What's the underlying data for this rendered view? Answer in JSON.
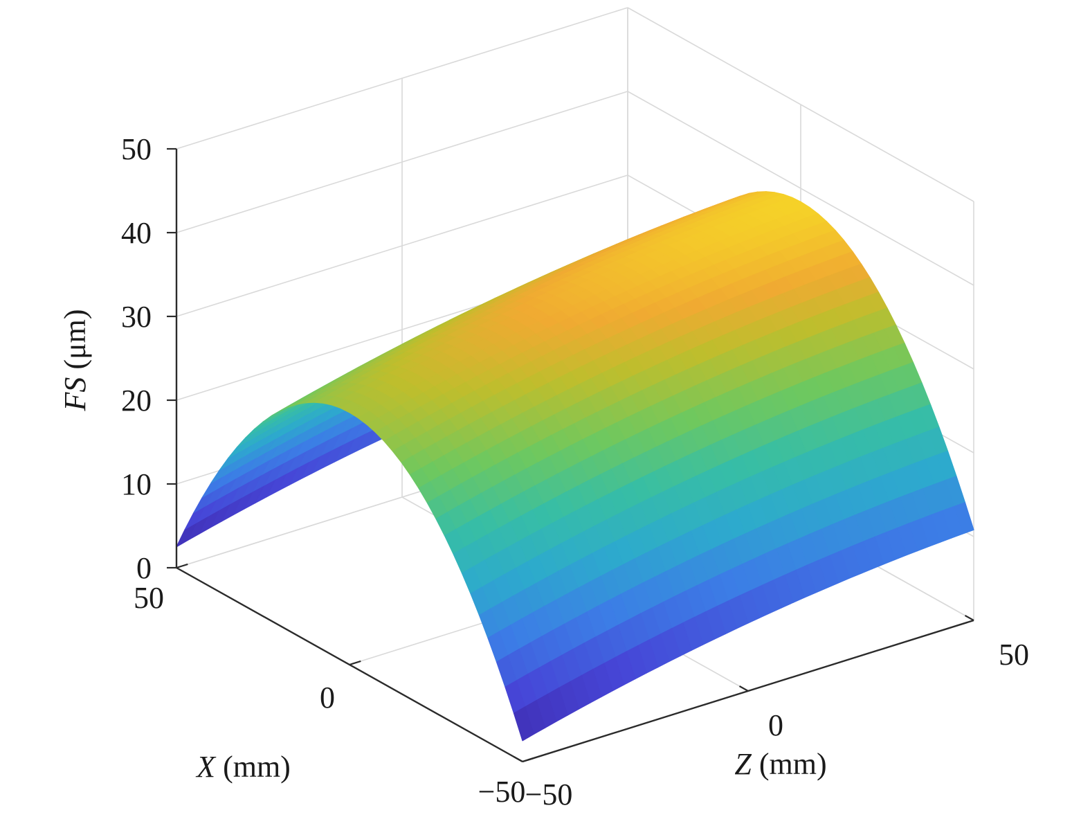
{
  "chart_data": {
    "type": "surface",
    "title": "",
    "xlabel": {
      "var": "X",
      "unit": " (mm)"
    },
    "zlabel": {
      "var": "Z",
      "unit": " (mm)"
    },
    "ylabel": {
      "var": "FS",
      "unit": " (μm)"
    },
    "x_ticks": [
      -50,
      0,
      50
    ],
    "z_ticks": [
      -50,
      0,
      50
    ],
    "fs_ticks": [
      0,
      10,
      20,
      30,
      40,
      50
    ],
    "x_tick_labels": [
      "−50",
      "0",
      "50"
    ],
    "z_tick_labels": [
      "−50",
      "0",
      "50"
    ],
    "fs_tick_labels": [
      "0",
      "10",
      "20",
      "30",
      "40",
      "50"
    ],
    "xlim": [
      -50,
      50
    ],
    "zlim": [
      -50,
      50
    ],
    "fslim": [
      0,
      50
    ],
    "grid": true,
    "colormap": "parula",
    "surface_description": "FS ≈ a − b·X² + c·Z − d·Z²",
    "surface_samples": {
      "x": [
        -50,
        -25,
        0,
        25,
        50
      ],
      "z": [
        -50,
        -25,
        0,
        25,
        50
      ],
      "fs": [
        [
          2.5,
          5.7,
          8.1,
          9.9,
          10.8
        ],
        [
          23.2,
          26.4,
          28.9,
          30.6,
          31.5
        ],
        [
          30.1,
          33.3,
          35.7,
          37.5,
          38.4
        ],
        [
          23.2,
          26.4,
          28.9,
          30.6,
          31.5
        ],
        [
          2.5,
          5.7,
          8.1,
          9.9,
          10.8
        ]
      ]
    },
    "colors": {
      "low": "#3e26a8",
      "mid": "#4fbf9e",
      "high": "#e8ef28",
      "axis": "#2b2b2b",
      "grid": "#d9d9d9"
    }
  }
}
